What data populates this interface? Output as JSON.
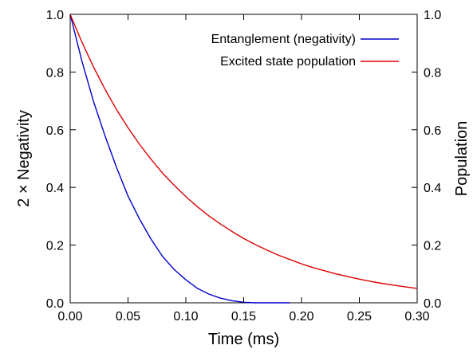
{
  "chart_data": {
    "type": "line",
    "xlabel": "Time (ms)",
    "ylabel_left": "2 × Negativity",
    "ylabel_right": "Population",
    "xlim": [
      0,
      0.3
    ],
    "ylim": [
      0,
      1
    ],
    "x_ticks": [
      "0.00",
      "0.05",
      "0.10",
      "0.15",
      "0.20",
      "0.25",
      "0.30"
    ],
    "y_ticks_left": [
      "0.0",
      "0.2",
      "0.4",
      "0.6",
      "0.8",
      "1.0"
    ],
    "y_ticks_right": [
      "0.0",
      "0.2",
      "0.4",
      "0.6",
      "0.8",
      "1.0"
    ],
    "grid": false,
    "legend_position": "top-right",
    "series": [
      {
        "name": "Entanglement (negativity)",
        "color": "#0000cc",
        "x": [
          0,
          0.01,
          0.02,
          0.03,
          0.04,
          0.05,
          0.06,
          0.07,
          0.08,
          0.09,
          0.1,
          0.11,
          0.12,
          0.13,
          0.14,
          0.15,
          0.16,
          0.17,
          0.18,
          0.19
        ],
        "y": [
          1.0,
          0.84,
          0.7,
          0.58,
          0.47,
          0.37,
          0.29,
          0.22,
          0.16,
          0.115,
          0.08,
          0.05,
          0.03,
          0.016,
          0.007,
          0.002,
          0.0,
          0.0,
          0.0,
          0.0
        ]
      },
      {
        "name": "Excited state population",
        "color": "#dd0000",
        "x": [
          0,
          0.01,
          0.02,
          0.03,
          0.04,
          0.05,
          0.06,
          0.07,
          0.08,
          0.09,
          0.1,
          0.11,
          0.12,
          0.13,
          0.14,
          0.15,
          0.16,
          0.17,
          0.18,
          0.19,
          0.2,
          0.21,
          0.22,
          0.23,
          0.24,
          0.25,
          0.26,
          0.27,
          0.28,
          0.29,
          0.3
        ],
        "y": [
          1.0,
          0.905,
          0.819,
          0.741,
          0.67,
          0.607,
          0.549,
          0.497,
          0.449,
          0.407,
          0.368,
          0.333,
          0.301,
          0.273,
          0.247,
          0.223,
          0.202,
          0.183,
          0.165,
          0.15,
          0.135,
          0.122,
          0.111,
          0.1,
          0.091,
          0.082,
          0.074,
          0.067,
          0.061,
          0.055,
          0.05
        ]
      }
    ]
  }
}
